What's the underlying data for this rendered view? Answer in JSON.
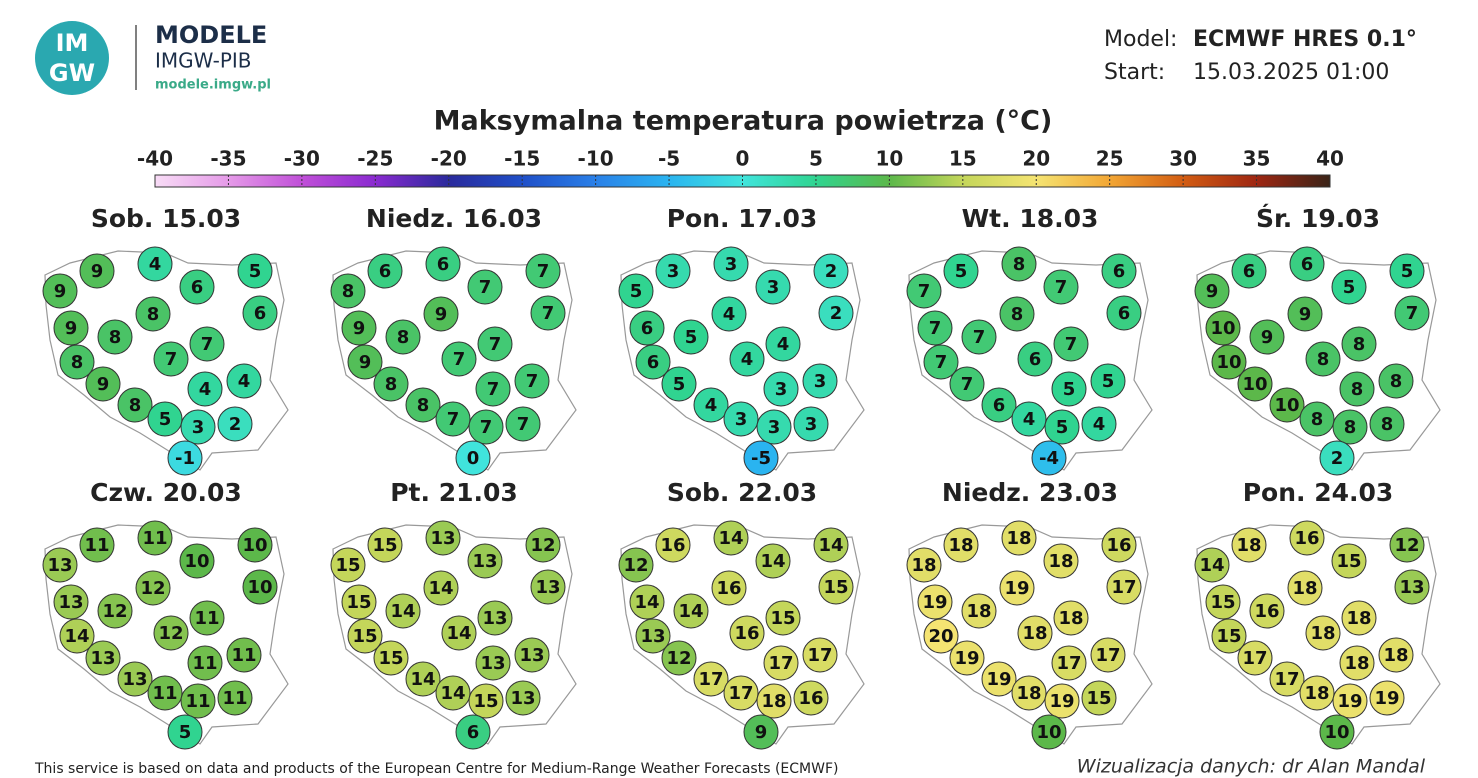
{
  "header": {
    "logo": {
      "top": "IM",
      "bottom": "GW"
    },
    "brand": "MODELE",
    "org": "IMGW-PIB",
    "url": "modele.imgw.pl",
    "model_label": "Model:",
    "model": "ECMWF HRES 0.1°",
    "start_label": "Start:",
    "start": "15.03.2025 01:00"
  },
  "title": "Maksymalna temperatura powietrza (°C)",
  "colorbar": {
    "ticks": [
      -40,
      -35,
      -30,
      -25,
      -20,
      -15,
      -10,
      -5,
      0,
      5,
      10,
      15,
      20,
      25,
      30,
      35,
      40
    ],
    "colors": [
      "#f8dcf6",
      "#e59ae8",
      "#c04fd8",
      "#8a2ad0",
      "#2a2a9c",
      "#1f4fc8",
      "#2a80e8",
      "#2ab4f0",
      "#40e4dc",
      "#30d490",
      "#5cb84a",
      "#c4d65a",
      "#f5e472",
      "#f2a634",
      "#d25c12",
      "#9e2612",
      "#3a2418"
    ]
  },
  "maps": [
    {
      "date": "Sob. 15.03",
      "values": [
        9,
        9,
        4,
        6,
        5,
        6,
        9,
        8,
        8,
        7,
        8,
        7,
        9,
        4,
        4,
        8,
        5,
        3,
        2,
        -1
      ]
    },
    {
      "date": "Niedz. 16.03",
      "values": [
        8,
        6,
        6,
        7,
        7,
        7,
        9,
        8,
        9,
        7,
        9,
        7,
        8,
        7,
        7,
        8,
        7,
        7,
        7,
        0
      ]
    },
    {
      "date": "Pon. 17.03",
      "values": [
        5,
        3,
        3,
        3,
        2,
        2,
        6,
        5,
        4,
        4,
        6,
        4,
        5,
        3,
        3,
        4,
        3,
        3,
        3,
        -5
      ]
    },
    {
      "date": "Wt. 18.03",
      "values": [
        7,
        5,
        8,
        7,
        6,
        6,
        7,
        7,
        8,
        7,
        7,
        6,
        7,
        5,
        5,
        6,
        4,
        5,
        4,
        -4
      ]
    },
    {
      "date": "Śr. 19.03",
      "values": [
        9,
        6,
        6,
        5,
        5,
        7,
        10,
        9,
        9,
        8,
        10,
        8,
        10,
        8,
        8,
        10,
        8,
        8,
        8,
        2
      ]
    },
    {
      "date": "Czw. 20.03",
      "values": [
        13,
        11,
        11,
        10,
        10,
        10,
        13,
        12,
        12,
        11,
        14,
        12,
        13,
        11,
        11,
        13,
        11,
        11,
        11,
        5
      ]
    },
    {
      "date": "Pt. 21.03",
      "values": [
        15,
        15,
        13,
        13,
        12,
        13,
        15,
        14,
        14,
        13,
        15,
        14,
        15,
        13,
        13,
        14,
        14,
        15,
        13,
        6
      ]
    },
    {
      "date": "Sob. 22.03",
      "values": [
        12,
        16,
        14,
        14,
        14,
        15,
        14,
        14,
        16,
        15,
        13,
        16,
        12,
        17,
        17,
        17,
        17,
        18,
        16,
        9
      ]
    },
    {
      "date": "Niedz. 23.03",
      "values": [
        18,
        18,
        18,
        18,
        16,
        17,
        19,
        18,
        19,
        18,
        20,
        18,
        19,
        17,
        17,
        19,
        18,
        19,
        15,
        10
      ]
    },
    {
      "date": "Pon. 24.03",
      "values": [
        14,
        18,
        16,
        15,
        12,
        13,
        15,
        16,
        18,
        18,
        15,
        18,
        17,
        18,
        18,
        17,
        18,
        19,
        19,
        10
      ]
    }
  ],
  "footer": {
    "source": "This service is based on data and products of the European Centre for Medium-Range Weather Forecasts (ECMWF)",
    "credit": "Wizualizacja danych: dr Alan Mandal"
  }
}
